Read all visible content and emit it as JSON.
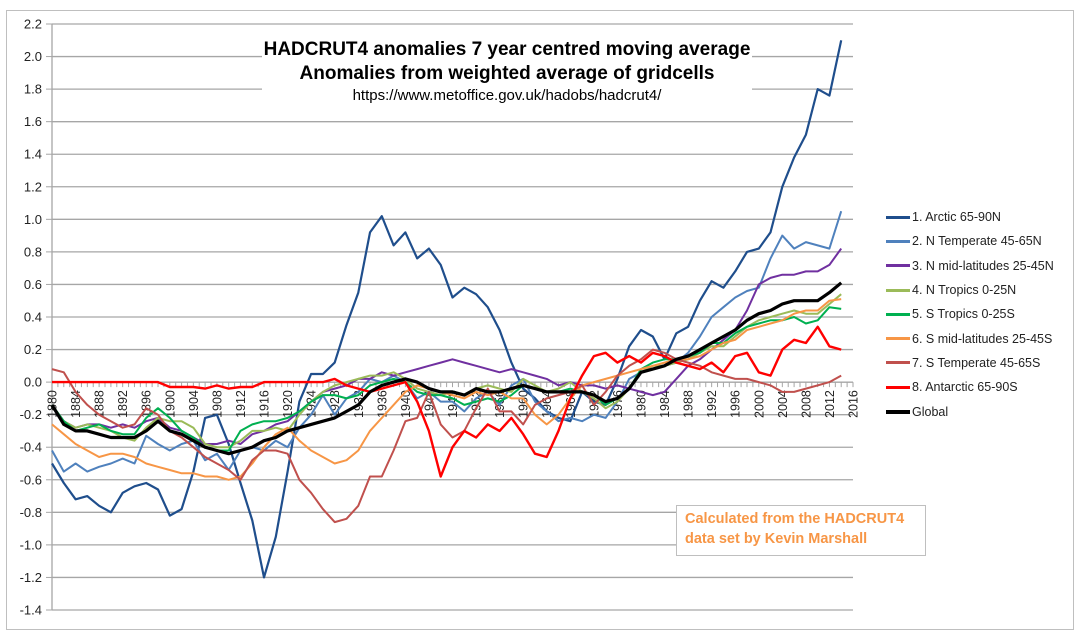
{
  "chart_data": {
    "type": "line",
    "title": "HADCRUT4 anomalies 7 year centred moving average",
    "subtitle": "Anomalies from weighted average of gridcells",
    "source_url": "https://www.metoffice.gov.uk/hadobs/hadcrut4/",
    "annotation": [
      "Calculated from the HADCRUT4",
      "data set by Kevin Marshall"
    ],
    "xlabel": "",
    "ylabel": "",
    "ylim": [
      -1.4,
      2.2
    ],
    "xlim": [
      1880,
      2016
    ],
    "grid": true,
    "legend_position": "right",
    "y_ticks": [
      "2.2",
      "2.0",
      "1.8",
      "1.6",
      "1.4",
      "1.2",
      "1.0",
      "0.8",
      "0.6",
      "0.4",
      "0.2",
      "0.0",
      "-0.2",
      "-0.4",
      "-0.6",
      "-0.8",
      "-1.0",
      "-1.2",
      "-1.4"
    ],
    "x_ticks": [
      "1880",
      "1884",
      "1888",
      "1892",
      "1896",
      "1900",
      "1904",
      "1908",
      "1912",
      "1916",
      "1920",
      "1924",
      "1928",
      "1932",
      "1936",
      "1940",
      "1944",
      "1948",
      "1952",
      "1956",
      "1960",
      "1964",
      "1968",
      "1972",
      "1976",
      "1980",
      "1984",
      "1988",
      "1992",
      "1996",
      "2000",
      "2004",
      "2008",
      "2012",
      "2016"
    ],
    "x": [
      1880,
      1882,
      1884,
      1886,
      1888,
      1890,
      1892,
      1894,
      1896,
      1898,
      1900,
      1902,
      1904,
      1906,
      1908,
      1910,
      1912,
      1914,
      1916,
      1918,
      1920,
      1922,
      1924,
      1926,
      1928,
      1930,
      1932,
      1934,
      1936,
      1938,
      1940,
      1942,
      1944,
      1946,
      1948,
      1950,
      1952,
      1954,
      1956,
      1958,
      1960,
      1962,
      1964,
      1966,
      1968,
      1970,
      1972,
      1974,
      1976,
      1978,
      1980,
      1982,
      1984,
      1986,
      1988,
      1990,
      1992,
      1994,
      1996,
      1998,
      2000,
      2002,
      2004,
      2006,
      2008,
      2010,
      2012,
      2014
    ],
    "series": [
      {
        "name": "1. Arctic 65-90N",
        "color": "#1f4e8c",
        "width": 2.2,
        "values": [
          -0.5,
          -0.62,
          -0.72,
          -0.7,
          -0.76,
          -0.8,
          -0.68,
          -0.64,
          -0.62,
          -0.66,
          -0.82,
          -0.78,
          -0.55,
          -0.22,
          -0.2,
          -0.38,
          -0.62,
          -0.85,
          -1.2,
          -0.95,
          -0.55,
          -0.12,
          0.05,
          0.05,
          0.12,
          0.35,
          0.55,
          0.92,
          1.02,
          0.84,
          0.92,
          0.76,
          0.82,
          0.72,
          0.52,
          0.58,
          0.54,
          0.46,
          0.32,
          0.12,
          -0.04,
          -0.1,
          -0.18,
          -0.22,
          -0.24,
          -0.06,
          -0.12,
          -0.14,
          0.02,
          0.22,
          0.32,
          0.28,
          0.14,
          0.3,
          0.34,
          0.5,
          0.62,
          0.58,
          0.68,
          0.8,
          0.82,
          0.92,
          1.2,
          1.38,
          1.52,
          1.8,
          1.76,
          2.1
        ]
      },
      {
        "name": "2. N Temperate 45-65N",
        "color": "#4f81bd",
        "width": 2,
        "values": [
          -0.42,
          -0.55,
          -0.5,
          -0.55,
          -0.52,
          -0.5,
          -0.47,
          -0.5,
          -0.33,
          -0.38,
          -0.42,
          -0.38,
          -0.36,
          -0.48,
          -0.44,
          -0.54,
          -0.42,
          -0.4,
          -0.42,
          -0.36,
          -0.4,
          -0.28,
          -0.2,
          -0.08,
          -0.2,
          -0.1,
          -0.06,
          0.02,
          0.0,
          0.04,
          0.0,
          -0.1,
          -0.06,
          -0.12,
          -0.12,
          -0.18,
          -0.1,
          -0.06,
          -0.14,
          -0.02,
          0.02,
          -0.12,
          -0.18,
          -0.24,
          -0.22,
          -0.24,
          -0.2,
          -0.22,
          -0.12,
          0.02,
          0.06,
          0.08,
          0.1,
          0.12,
          0.18,
          0.28,
          0.4,
          0.46,
          0.52,
          0.56,
          0.58,
          0.76,
          0.9,
          0.82,
          0.86,
          0.84,
          0.82,
          1.05
        ]
      },
      {
        "name": "3. N mid-latitudes 25-45N",
        "color": "#7030a0",
        "width": 2,
        "values": [
          -0.14,
          -0.24,
          -0.28,
          -0.26,
          -0.26,
          -0.28,
          -0.26,
          -0.28,
          -0.24,
          -0.22,
          -0.28,
          -0.3,
          -0.34,
          -0.38,
          -0.38,
          -0.36,
          -0.38,
          -0.32,
          -0.3,
          -0.26,
          -0.24,
          -0.18,
          -0.12,
          -0.06,
          -0.04,
          -0.02,
          0.02,
          0.02,
          0.06,
          0.04,
          0.06,
          0.08,
          0.1,
          0.12,
          0.14,
          0.12,
          0.1,
          0.08,
          0.06,
          0.08,
          0.06,
          0.04,
          0.02,
          -0.02,
          0.0,
          -0.02,
          -0.02,
          -0.04,
          -0.02,
          -0.04,
          -0.06,
          -0.08,
          -0.06,
          0.02,
          0.1,
          0.14,
          0.2,
          0.26,
          0.32,
          0.44,
          0.6,
          0.64,
          0.66,
          0.66,
          0.68,
          0.68,
          0.72,
          0.82
        ]
      },
      {
        "name": "4. N Tropics 0-25N",
        "color": "#9bbb59",
        "width": 2,
        "values": [
          -0.14,
          -0.24,
          -0.28,
          -0.26,
          -0.28,
          -0.3,
          -0.34,
          -0.36,
          -0.28,
          -0.22,
          -0.24,
          -0.24,
          -0.28,
          -0.38,
          -0.4,
          -0.4,
          -0.36,
          -0.3,
          -0.3,
          -0.28,
          -0.3,
          -0.2,
          -0.12,
          -0.06,
          -0.02,
          0.0,
          0.02,
          0.04,
          0.04,
          0.06,
          0.02,
          -0.04,
          -0.06,
          -0.08,
          -0.06,
          -0.08,
          -0.04,
          -0.02,
          -0.04,
          -0.06,
          0.02,
          -0.02,
          -0.06,
          -0.04,
          0.0,
          -0.06,
          -0.1,
          -0.16,
          -0.12,
          -0.04,
          0.06,
          0.1,
          0.1,
          0.12,
          0.14,
          0.18,
          0.22,
          0.22,
          0.28,
          0.34,
          0.38,
          0.4,
          0.42,
          0.44,
          0.42,
          0.42,
          0.48,
          0.54
        ]
      },
      {
        "name": "5. S Tropics 0-25S",
        "color": "#00b050",
        "width": 2,
        "values": [
          -0.14,
          -0.24,
          -0.3,
          -0.28,
          -0.26,
          -0.3,
          -0.32,
          -0.32,
          -0.22,
          -0.16,
          -0.22,
          -0.3,
          -0.34,
          -0.4,
          -0.42,
          -0.42,
          -0.3,
          -0.26,
          -0.24,
          -0.24,
          -0.22,
          -0.18,
          -0.12,
          -0.08,
          -0.08,
          -0.1,
          -0.08,
          -0.02,
          0.0,
          0.02,
          0.0,
          -0.06,
          -0.08,
          -0.08,
          -0.1,
          -0.14,
          -0.12,
          -0.1,
          -0.12,
          -0.08,
          -0.02,
          -0.04,
          -0.06,
          -0.06,
          -0.04,
          -0.06,
          -0.08,
          -0.14,
          -0.1,
          -0.04,
          0.08,
          0.12,
          0.14,
          0.14,
          0.16,
          0.18,
          0.24,
          0.24,
          0.3,
          0.34,
          0.36,
          0.38,
          0.38,
          0.4,
          0.36,
          0.38,
          0.46,
          0.45
        ]
      },
      {
        "name": "6. S mid-latitudes 25-45S",
        "color": "#f79646",
        "width": 2,
        "values": [
          -0.26,
          -0.32,
          -0.38,
          -0.42,
          -0.46,
          -0.44,
          -0.44,
          -0.46,
          -0.5,
          -0.52,
          -0.54,
          -0.56,
          -0.56,
          -0.58,
          -0.58,
          -0.6,
          -0.58,
          -0.5,
          -0.4,
          -0.32,
          -0.28,
          -0.36,
          -0.42,
          -0.46,
          -0.5,
          -0.48,
          -0.42,
          -0.3,
          -0.22,
          -0.14,
          -0.06,
          -0.02,
          -0.04,
          -0.06,
          -0.08,
          -0.1,
          -0.06,
          -0.08,
          -0.06,
          -0.1,
          -0.1,
          -0.2,
          -0.26,
          -0.2,
          -0.1,
          -0.02,
          0.0,
          0.02,
          0.04,
          0.06,
          0.08,
          0.1,
          0.12,
          0.14,
          0.14,
          0.16,
          0.2,
          0.24,
          0.26,
          0.32,
          0.34,
          0.36,
          0.38,
          0.42,
          0.44,
          0.44,
          0.5,
          0.51
        ]
      },
      {
        "name": "7. S Temperate 45-65S",
        "color": "#c0504d",
        "width": 2,
        "values": [
          0.08,
          0.06,
          -0.06,
          -0.14,
          -0.2,
          -0.24,
          -0.28,
          -0.26,
          -0.16,
          -0.2,
          -0.3,
          -0.34,
          -0.4,
          -0.46,
          -0.5,
          -0.54,
          -0.6,
          -0.48,
          -0.42,
          -0.42,
          -0.44,
          -0.6,
          -0.68,
          -0.78,
          -0.86,
          -0.84,
          -0.76,
          -0.58,
          -0.58,
          -0.42,
          -0.24,
          -0.22,
          -0.06,
          -0.26,
          -0.34,
          -0.3,
          -0.16,
          -0.04,
          -0.18,
          -0.18,
          -0.26,
          -0.14,
          -0.1,
          -0.08,
          -0.06,
          -0.02,
          -0.14,
          -0.06,
          0.04,
          0.1,
          0.14,
          0.2,
          0.18,
          0.14,
          0.12,
          0.1,
          0.06,
          0.04,
          0.02,
          0.02,
          0.0,
          -0.02,
          -0.06,
          -0.06,
          -0.04,
          -0.02,
          0.0,
          0.04
        ]
      },
      {
        "name": "8. Antarctic 65-90S",
        "color": "#ff0000",
        "width": 2.4,
        "values": [
          0.0,
          0.0,
          0.0,
          0.0,
          0.0,
          0.0,
          0.0,
          0.0,
          0.0,
          0.0,
          -0.03,
          -0.03,
          -0.03,
          -0.04,
          -0.02,
          -0.04,
          -0.03,
          -0.03,
          0.0,
          0.0,
          0.0,
          0.0,
          0.0,
          0.0,
          0.02,
          -0.02,
          -0.04,
          -0.06,
          -0.04,
          -0.02,
          0.0,
          -0.12,
          -0.3,
          -0.58,
          -0.4,
          -0.3,
          -0.34,
          -0.26,
          -0.3,
          -0.22,
          -0.32,
          -0.44,
          -0.46,
          -0.3,
          -0.1,
          0.04,
          0.16,
          0.18,
          0.12,
          0.16,
          0.12,
          0.18,
          0.16,
          0.12,
          0.1,
          0.08,
          0.12,
          0.06,
          0.16,
          0.18,
          0.06,
          0.04,
          0.2,
          0.26,
          0.24,
          0.34,
          0.22,
          0.2
        ]
      },
      {
        "name": "Global",
        "color": "#000000",
        "width": 3.2,
        "values": [
          -0.14,
          -0.26,
          -0.3,
          -0.3,
          -0.32,
          -0.34,
          -0.34,
          -0.34,
          -0.3,
          -0.24,
          -0.3,
          -0.32,
          -0.36,
          -0.4,
          -0.42,
          -0.44,
          -0.42,
          -0.4,
          -0.36,
          -0.34,
          -0.3,
          -0.28,
          -0.26,
          -0.24,
          -0.22,
          -0.18,
          -0.14,
          -0.06,
          -0.02,
          0.0,
          0.02,
          0.0,
          -0.04,
          -0.06,
          -0.06,
          -0.08,
          -0.04,
          -0.06,
          -0.06,
          -0.04,
          -0.02,
          -0.04,
          -0.06,
          -0.06,
          -0.06,
          -0.06,
          -0.08,
          -0.12,
          -0.1,
          -0.04,
          0.06,
          0.08,
          0.1,
          0.14,
          0.16,
          0.2,
          0.24,
          0.28,
          0.32,
          0.38,
          0.42,
          0.44,
          0.48,
          0.5,
          0.5,
          0.5,
          0.55,
          0.61
        ]
      }
    ]
  }
}
